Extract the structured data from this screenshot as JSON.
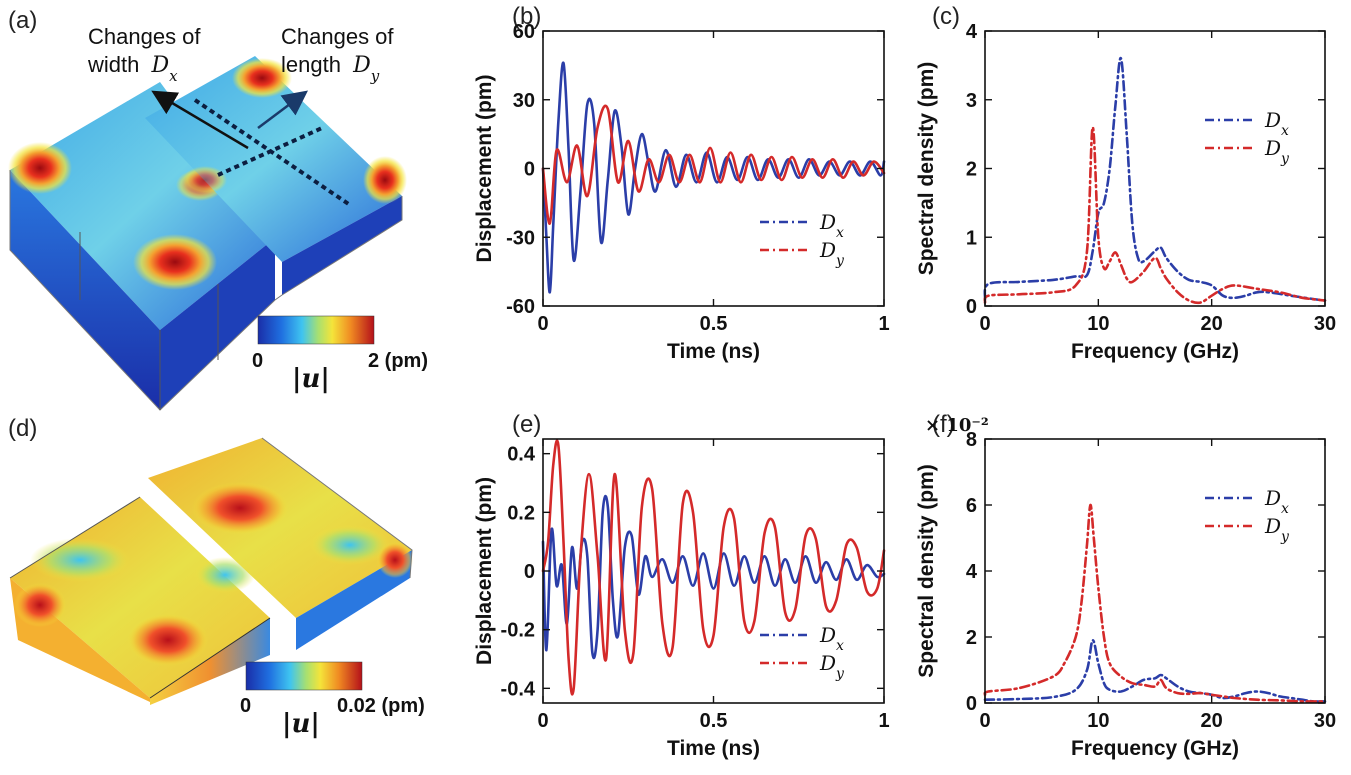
{
  "panels": {
    "a": {
      "label": "(a)",
      "annotation_width_line1": "Changes of",
      "annotation_width_line2": "width",
      "annotation_width_symbol": "Dx",
      "annotation_length_line1": "Changes of",
      "annotation_length_line2": "length",
      "annotation_length_symbol": "Dy",
      "colorbar": {
        "min_label": "0",
        "max_label": "2 (pm)",
        "quantity_label": "|u|"
      }
    },
    "d": {
      "label": "(d)",
      "colorbar": {
        "min_label": "0",
        "max_label": "0.02 (pm)",
        "quantity_label": "|u|"
      }
    }
  },
  "chart_data": [
    {
      "panel": "(b)",
      "type": "line",
      "xlabel": "Time (ns)",
      "ylabel": "Displacement (pm)",
      "xlim": [
        0,
        1
      ],
      "ylim": [
        -60,
        60
      ],
      "xticks": [
        "0",
        "0.5",
        "1"
      ],
      "yticks": [
        "-60",
        "-30",
        "0",
        "30",
        "60"
      ],
      "legend_position": "lower-right",
      "colors": {
        "Dx": "#2b3ea8",
        "Dy": "#d42a2a"
      },
      "series": [
        {
          "name": "Dx",
          "style": "solid",
          "x": [
            0,
            0.01,
            0.02,
            0.03,
            0.045,
            0.06,
            0.075,
            0.09,
            0.11,
            0.13,
            0.15,
            0.17,
            0.19,
            0.21,
            0.23,
            0.25,
            0.27,
            0.29,
            0.31,
            0.33,
            0.36,
            0.39,
            0.42,
            0.45,
            0.48,
            0.51,
            0.54,
            0.57,
            0.6,
            0.63,
            0.66,
            0.69,
            0.72,
            0.75,
            0.78,
            0.81,
            0.84,
            0.87,
            0.9,
            0.93,
            0.96,
            0.99,
            1.0
          ],
          "y": [
            0,
            -30,
            -54,
            -25,
            20,
            46,
            8,
            -40,
            -10,
            28,
            20,
            -32,
            -5,
            25,
            10,
            -20,
            0,
            15,
            2,
            -10,
            8,
            -8,
            6,
            -6,
            7,
            -6,
            5,
            -5,
            5,
            -5,
            4,
            -4,
            4,
            -4,
            4,
            -3,
            3,
            -3,
            3,
            -3,
            3,
            -3,
            3
          ]
        },
        {
          "name": "Dy",
          "style": "solid",
          "x": [
            0,
            0.02,
            0.04,
            0.07,
            0.1,
            0.13,
            0.16,
            0.19,
            0.22,
            0.25,
            0.28,
            0.31,
            0.34,
            0.37,
            0.4,
            0.43,
            0.46,
            0.49,
            0.52,
            0.55,
            0.58,
            0.61,
            0.64,
            0.67,
            0.7,
            0.73,
            0.76,
            0.79,
            0.82,
            0.85,
            0.88,
            0.91,
            0.94,
            0.97,
            1.0
          ],
          "y": [
            0,
            -24,
            8,
            -6,
            10,
            -12,
            18,
            26,
            -6,
            12,
            -10,
            4,
            -6,
            6,
            -6,
            6,
            -6,
            9,
            -6,
            7,
            -6,
            6,
            -5,
            5,
            -5,
            5,
            -4,
            4,
            -4,
            4,
            -4,
            3,
            -3,
            3,
            -2
          ]
        }
      ]
    },
    {
      "panel": "(c)",
      "type": "line",
      "xlabel": "Frequency (GHz)",
      "ylabel": "Spectral density (pm)",
      "xlim": [
        0,
        30
      ],
      "ylim": [
        0,
        4
      ],
      "xticks": [
        "0",
        "10",
        "20",
        "30"
      ],
      "yticks": [
        "0",
        "1",
        "2",
        "3",
        "4"
      ],
      "legend_position": "upper-right",
      "colors": {
        "Dx": "#2b3ea8",
        "Dy": "#d42a2a"
      },
      "series": [
        {
          "name": "Dx",
          "style": "dash-dot",
          "x": [
            0,
            0.3,
            3,
            6,
            8,
            9,
            9.5,
            10,
            10.5,
            11,
            11.5,
            12,
            12.5,
            13,
            13.5,
            14,
            15,
            15.5,
            16,
            17,
            18,
            19,
            20,
            21,
            22,
            23,
            24,
            25,
            27,
            29,
            30
          ],
          "y": [
            0.1,
            0.32,
            0.35,
            0.38,
            0.43,
            0.45,
            0.8,
            1.35,
            1.5,
            2.0,
            2.9,
            3.6,
            2.5,
            1.2,
            0.7,
            0.65,
            0.8,
            0.85,
            0.7,
            0.5,
            0.38,
            0.35,
            0.3,
            0.15,
            0.12,
            0.15,
            0.2,
            0.2,
            0.15,
            0.1,
            0.08
          ]
        },
        {
          "name": "Dy",
          "style": "dash-dot",
          "x": [
            0,
            0.3,
            3,
            6,
            8,
            9,
            9.5,
            10,
            10.5,
            11,
            11.5,
            12,
            12.5,
            13,
            14,
            15,
            15.5,
            16,
            17,
            18,
            19,
            20,
            21,
            22,
            24,
            26,
            28,
            30
          ],
          "y": [
            0.05,
            0.15,
            0.17,
            0.2,
            0.3,
            0.8,
            2.6,
            1.0,
            0.55,
            0.65,
            0.78,
            0.6,
            0.4,
            0.35,
            0.5,
            0.7,
            0.55,
            0.4,
            0.2,
            0.08,
            0.05,
            0.15,
            0.25,
            0.3,
            0.25,
            0.2,
            0.12,
            0.08
          ]
        }
      ]
    },
    {
      "panel": "(e)",
      "type": "line",
      "xlabel": "Time (ns)",
      "ylabel": "Displacement (pm)",
      "xlim": [
        0,
        1
      ],
      "ylim": [
        -0.45,
        0.45
      ],
      "xticks": [
        "0",
        "0.5",
        "1"
      ],
      "yticks": [
        "-0.4",
        "-0.2",
        "0",
        "0.2",
        "0.4"
      ],
      "legend_position": "lower-right",
      "colors": {
        "Dx": "#2b3ea8",
        "Dy": "#d42a2a"
      },
      "series": [
        {
          "name": "Dx",
          "style": "solid",
          "x": [
            0,
            0.01,
            0.025,
            0.04,
            0.055,
            0.07,
            0.085,
            0.1,
            0.115,
            0.13,
            0.145,
            0.16,
            0.175,
            0.19,
            0.205,
            0.22,
            0.24,
            0.26,
            0.28,
            0.3,
            0.32,
            0.35,
            0.38,
            0.41,
            0.44,
            0.47,
            0.5,
            0.53,
            0.56,
            0.59,
            0.62,
            0.65,
            0.68,
            0.71,
            0.74,
            0.77,
            0.8,
            0.83,
            0.86,
            0.89,
            0.92,
            0.95,
            0.98,
            1.0
          ],
          "y": [
            0.1,
            -0.27,
            0.14,
            -0.05,
            0.02,
            -0.18,
            0.08,
            -0.06,
            0.1,
            0.05,
            -0.28,
            -0.2,
            0.2,
            0.22,
            -0.1,
            -0.22,
            0.08,
            0.12,
            -0.08,
            0.05,
            -0.02,
            0.04,
            -0.04,
            0.05,
            -0.05,
            0.06,
            -0.06,
            0.06,
            -0.05,
            0.05,
            -0.04,
            0.05,
            -0.05,
            0.04,
            -0.04,
            0.05,
            -0.04,
            0.03,
            -0.03,
            0.04,
            -0.03,
            0.02,
            -0.02,
            -0.01
          ]
        },
        {
          "name": "Dy",
          "style": "solid",
          "x": [
            0,
            0.015,
            0.03,
            0.045,
            0.06,
            0.075,
            0.09,
            0.11,
            0.135,
            0.16,
            0.185,
            0.21,
            0.24,
            0.265,
            0.29,
            0.32,
            0.35,
            0.38,
            0.41,
            0.44,
            0.47,
            0.5,
            0.53,
            0.56,
            0.59,
            0.62,
            0.65,
            0.68,
            0.71,
            0.74,
            0.77,
            0.8,
            0.83,
            0.86,
            0.89,
            0.92,
            0.95,
            0.98,
            1.0
          ],
          "y": [
            0,
            0.1,
            0.36,
            0.43,
            0.1,
            -0.3,
            -0.4,
            0.05,
            0.33,
            0.05,
            -0.3,
            0.33,
            -0.2,
            -0.28,
            0.22,
            0.28,
            -0.18,
            -0.26,
            0.23,
            0.2,
            -0.2,
            -0.22,
            0.15,
            0.18,
            -0.17,
            -0.17,
            0.13,
            0.15,
            -0.14,
            -0.13,
            0.12,
            0.11,
            -0.12,
            -0.1,
            0.09,
            0.08,
            -0.07,
            -0.06,
            0.07
          ]
        }
      ]
    },
    {
      "panel": "(f)",
      "type": "line",
      "xlabel": "Frequency (GHz)",
      "ylabel": "Spectral density (pm)",
      "xlim": [
        0,
        30
      ],
      "ylim": [
        0,
        8
      ],
      "y_multiplier": "× 10⁻²",
      "xticks": [
        "0",
        "10",
        "20",
        "30"
      ],
      "yticks": [
        "0",
        "2",
        "4",
        "6",
        "8"
      ],
      "legend_position": "upper-right",
      "colors": {
        "Dx": "#2b3ea8",
        "Dy": "#d42a2a"
      },
      "series": [
        {
          "name": "Dx",
          "style": "dash-dot",
          "x": [
            0,
            3,
            6,
            8,
            9,
            9.5,
            10,
            10.5,
            11,
            12,
            13,
            14,
            15,
            15.5,
            16,
            17,
            18,
            19,
            20,
            21,
            22,
            23,
            24,
            25,
            26,
            27,
            28,
            29,
            30
          ],
          "y": [
            0.1,
            0.12,
            0.18,
            0.4,
            1.0,
            1.9,
            1.2,
            0.6,
            0.4,
            0.35,
            0.5,
            0.7,
            0.75,
            0.85,
            0.75,
            0.5,
            0.35,
            0.3,
            0.25,
            0.15,
            0.2,
            0.3,
            0.35,
            0.3,
            0.2,
            0.15,
            0.1,
            0.05,
            0.05
          ]
        },
        {
          "name": "Dy",
          "style": "dash-dot",
          "x": [
            0,
            0.3,
            3,
            6,
            7,
            8,
            8.5,
            9,
            9.3,
            9.6,
            10,
            10.5,
            11,
            12,
            13,
            14,
            15,
            15.5,
            16,
            17,
            18,
            19,
            20,
            21,
            22,
            24,
            26,
            28,
            30
          ],
          "y": [
            0.25,
            0.35,
            0.45,
            0.8,
            1.2,
            2.0,
            3.0,
            4.8,
            6.0,
            5.0,
            3.5,
            2.0,
            1.2,
            0.8,
            0.6,
            0.55,
            0.5,
            0.7,
            0.45,
            0.3,
            0.28,
            0.3,
            0.25,
            0.2,
            0.15,
            0.1,
            0.08,
            0.05,
            0.05
          ]
        }
      ]
    }
  ]
}
